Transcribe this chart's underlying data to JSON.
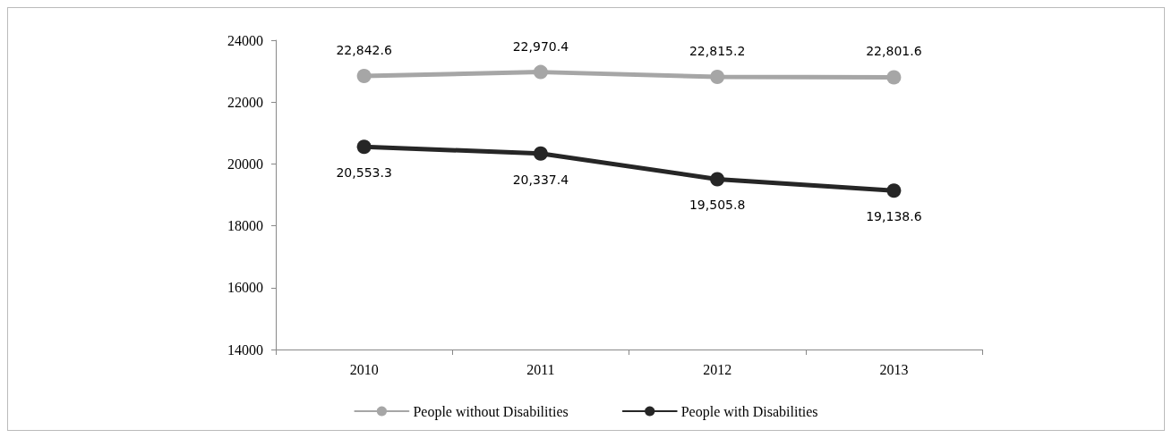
{
  "chart_data": {
    "type": "line",
    "categories": [
      "2010",
      "2011",
      "2012",
      "2013"
    ],
    "series": [
      {
        "name": "People without Disabilities",
        "color": "#a6a6a6",
        "values": [
          22842.6,
          22970.4,
          22815.2,
          22801.6
        ],
        "value_labels": [
          "22,842.6",
          "22,970.4",
          "22,815.2",
          "22,801.6"
        ]
      },
      {
        "name": "People with Disabilities",
        "color": "#262626",
        "values": [
          20553.3,
          20337.4,
          19505.8,
          19138.6
        ],
        "value_labels": [
          "20,553.3",
          "20,337.4",
          "19,505.8",
          "19,138.6"
        ]
      }
    ],
    "ylim": [
      14000,
      24000
    ],
    "yticks": [
      14000,
      16000,
      18000,
      20000,
      22000,
      24000
    ],
    "grid": false,
    "legend": "bottom",
    "marker": "circle",
    "line_style": "solid"
  }
}
